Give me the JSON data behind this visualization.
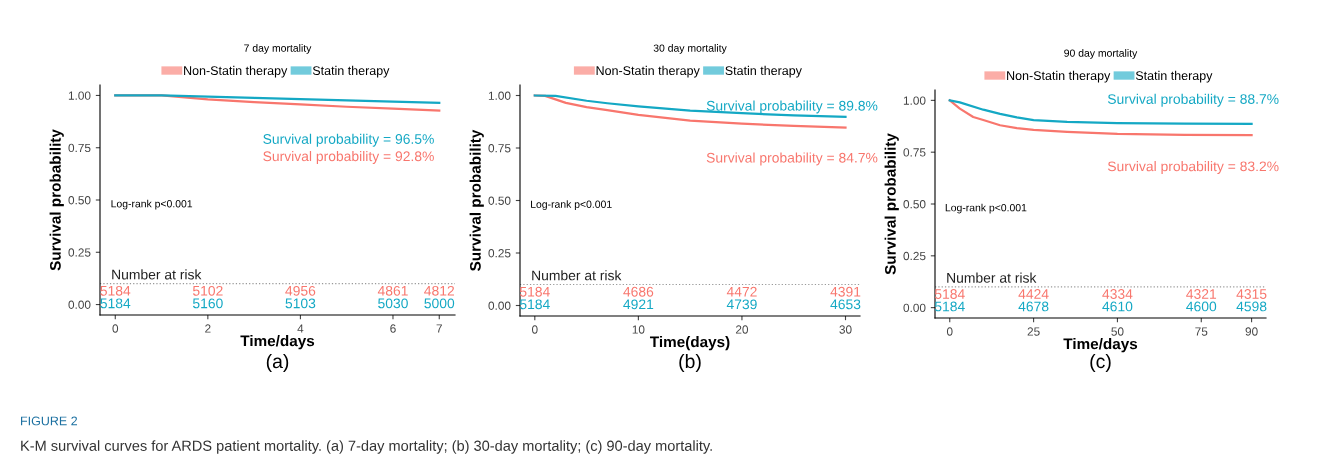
{
  "chart_data": [
    {
      "type": "line",
      "title": "7 day mortality",
      "xlabel": "Time/days",
      "ylabel": "Survival probability",
      "legend": "top",
      "grid": false,
      "xlim": [
        -0.33,
        7.34
      ],
      "xticks": [
        0,
        2,
        4,
        6,
        7
      ],
      "ylim": [
        -0.05,
        1.05
      ],
      "yticks": [
        {
          "value": 0,
          "label": "0.00"
        },
        {
          "value": 0.25,
          "label": "0.25"
        },
        {
          "value": 0.5,
          "label": "0.50"
        },
        {
          "value": 0.75,
          "label": "0.75"
        },
        {
          "value": 1,
          "label": "1.00"
        }
      ],
      "ref_lines": [
        {
          "axis": "y",
          "value": 0.1,
          "label": "Number at risk",
          "color": "#999999",
          "line_style": "dotted"
        }
      ],
      "series": [
        {
          "name": "Non-Statin therapy",
          "color": "#f8766d",
          "x": [
            0,
            1,
            2,
            3,
            4,
            5,
            6,
            7
          ],
          "values": [
            1.0,
            1.0,
            0.981,
            0.968,
            0.957,
            0.946,
            0.937,
            0.928
          ]
        },
        {
          "name": "Statin therapy",
          "color": "#14a8c4",
          "x": [
            0,
            1,
            2,
            3,
            4,
            5,
            6,
            7
          ],
          "values": [
            1.0,
            1.0,
            0.994,
            0.988,
            0.982,
            0.976,
            0.97,
            0.965
          ]
        }
      ],
      "annotations": [
        "Log-rank p<0.001",
        "(a)",
        "Survival probability = 92.8%",
        "Survival probability = 96.5%",
        "5184",
        "5102",
        "4956",
        "4861",
        "4812",
        "5184",
        "5160",
        "5103",
        "5030",
        "5000",
        "FIGURE 2",
        "K-M survival curves for ARDS patient mortality. (a) 7-day mortality; (b) 30-day mortality; (c) 90-day mortality."
      ]
    },
    {
      "type": "line",
      "title": "30 day mortality",
      "xlabel": "Time(days)",
      "ylabel": "Survival probability",
      "legend": "top",
      "grid": false,
      "xlim": [
        -1.43,
        31.4
      ],
      "xticks": [
        0,
        10,
        20,
        30
      ],
      "ylim": [
        -0.05,
        1.05
      ],
      "yticks": [
        {
          "value": 0,
          "label": "0.00"
        },
        {
          "value": 0.25,
          "label": "0.25"
        },
        {
          "value": 0.5,
          "label": "0.50"
        },
        {
          "value": 0.75,
          "label": "0.75"
        },
        {
          "value": 1,
          "label": "1.00"
        }
      ],
      "ref_lines": [
        {
          "axis": "y",
          "value": 0.1,
          "label": "Number at risk",
          "color": "#999999",
          "line_style": "dotted"
        }
      ],
      "series": [
        {
          "name": "Non-Statin therapy",
          "color": "#f8766d",
          "x": [
            0,
            1,
            3,
            5,
            7,
            10,
            15,
            20,
            25,
            30
          ],
          "values": [
            1.0,
            0.998,
            0.965,
            0.945,
            0.93,
            0.908,
            0.88,
            0.866,
            0.855,
            0.847
          ]
        },
        {
          "name": "Statin therapy",
          "color": "#14a8c4",
          "x": [
            0,
            2,
            5,
            7,
            10,
            15,
            20,
            25,
            30
          ],
          "values": [
            1.0,
            0.998,
            0.975,
            0.963,
            0.948,
            0.928,
            0.916,
            0.905,
            0.898
          ]
        }
      ],
      "annotations": [
        "Log-rank p<0.001",
        "(b)",
        "Survival probability = 84.7%",
        "Survival probability = 89.8%",
        "5184",
        "4686",
        "4472",
        "4391",
        "5184",
        "4921",
        "4739",
        "4653"
      ]
    },
    {
      "type": "line",
      "title": "90 day mortality",
      "xlabel": "Time/days",
      "ylabel": "Survival probability",
      "legend": "top",
      "grid": false,
      "xlim": [
        -4.4,
        94.3
      ],
      "xticks": [
        0,
        25,
        50,
        75,
        90
      ],
      "ylim": [
        -0.05,
        1.05
      ],
      "yticks": [
        {
          "value": 0,
          "label": "0.00"
        },
        {
          "value": 0.25,
          "label": "0.25"
        },
        {
          "value": 0.5,
          "label": "0.50"
        },
        {
          "value": 0.75,
          "label": "0.75"
        },
        {
          "value": 1,
          "label": "1.00"
        }
      ],
      "ref_lines": [
        {
          "axis": "y",
          "value": 0.1,
          "label": "Number at risk",
          "color": "#999999",
          "line_style": "dotted"
        }
      ],
      "series": [
        {
          "name": "Non-Statin therapy",
          "color": "#f8766d",
          "x": [
            0,
            3,
            7,
            10,
            15,
            20,
            25,
            35,
            50,
            70,
            90
          ],
          "values": [
            1.0,
            0.96,
            0.92,
            0.905,
            0.88,
            0.866,
            0.858,
            0.848,
            0.838,
            0.834,
            0.832
          ]
        },
        {
          "name": "Statin therapy",
          "color": "#14a8c4",
          "x": [
            0,
            3,
            10,
            15,
            20,
            25,
            35,
            50,
            70,
            90
          ],
          "values": [
            1.0,
            0.99,
            0.955,
            0.935,
            0.918,
            0.905,
            0.896,
            0.89,
            0.888,
            0.887
          ]
        }
      ],
      "annotations": [
        "Log-rank p<0.001",
        "(c)",
        "Survival probability = 83.2%",
        "Survival probability = 88.7%",
        "5184",
        "4424",
        "4334",
        "4321",
        "4315",
        "5184",
        "4678",
        "4610",
        "4600",
        "4598"
      ]
    }
  ]
}
